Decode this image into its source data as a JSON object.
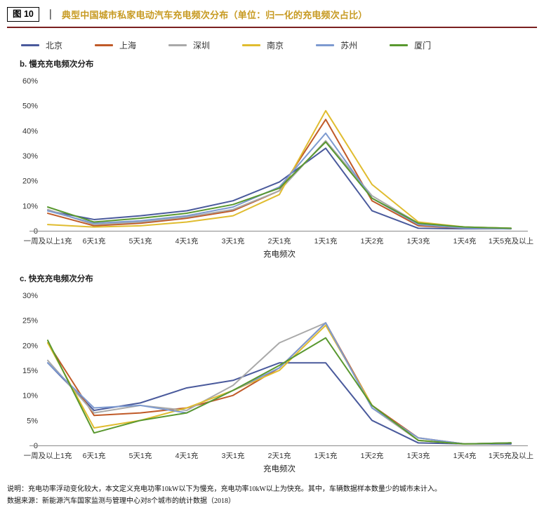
{
  "figure": {
    "tag": "图 10",
    "separator": "｜",
    "title": "典型中国城市私家电动汽车充电频次分布（单位：归一化的充电频次占比）",
    "title_color": "#c79a22",
    "rule_color": "#7a1f1f"
  },
  "chart_data": [
    {
      "type": "line",
      "section_label": "b. 慢充充电频次分布",
      "xlabel": "充电频次",
      "legend_position": "top",
      "grid": false,
      "categories": [
        "一周及以上1充",
        "6天1充",
        "5天1充",
        "4天1充",
        "3天1充",
        "2天1充",
        "1天1充",
        "1天2充",
        "1天3充",
        "1天4充",
        "1天5充及以上"
      ],
      "ylim": [
        0,
        60
      ],
      "ytick_values": [
        0,
        10,
        20,
        30,
        40,
        50,
        60
      ],
      "ytick_labels": [
        "0",
        "10%",
        "20%",
        "30%",
        "40%",
        "50%",
        "60%"
      ],
      "series": [
        {
          "name": "北京",
          "color": "#4a5a9c",
          "values": [
            8,
            4.5,
            6,
            8,
            12,
            19.5,
            33,
            8,
            1,
            0.8,
            0.8
          ]
        },
        {
          "name": "上海",
          "color": "#c05a28",
          "values": [
            7,
            2,
            3,
            5,
            8,
            16,
            44.5,
            12,
            2,
            1,
            0.8
          ]
        },
        {
          "name": "深圳",
          "color": "#a9a9a9",
          "values": [
            8.5,
            2.5,
            3.5,
            5.5,
            8.5,
            16,
            36,
            14,
            3,
            1.5,
            1
          ]
        },
        {
          "name": "南京",
          "color": "#e0bc2f",
          "values": [
            2.5,
            1.5,
            2,
            3.5,
            6,
            14.5,
            48,
            18.5,
            3.5,
            1.5,
            1
          ]
        },
        {
          "name": "苏州",
          "color": "#7d9ad0",
          "values": [
            8,
            3,
            4,
            6,
            9.5,
            17.5,
            39,
            13,
            2.5,
            1,
            0.8
          ]
        },
        {
          "name": "厦门",
          "color": "#59982f",
          "values": [
            9.5,
            3.5,
            5,
            7,
            10.5,
            17,
            35.5,
            13,
            3,
            1.5,
            1
          ]
        }
      ]
    },
    {
      "type": "line",
      "section_label": "c. 快充充电频次分布",
      "xlabel": "充电频次",
      "legend_position": "top",
      "grid": false,
      "categories": [
        "一周及以上1充",
        "6天1充",
        "5天1充",
        "4天1充",
        "3天1充",
        "2天1充",
        "1天1充",
        "1天2充",
        "1天3充",
        "1天4充",
        "1天5充及以上"
      ],
      "ylim": [
        0,
        30
      ],
      "ytick_values": [
        0,
        5,
        10,
        15,
        20,
        25,
        30
      ],
      "ytick_labels": [
        "0",
        "5%",
        "10%",
        "15%",
        "20%",
        "25%",
        "30%"
      ],
      "series": [
        {
          "name": "北京",
          "color": "#4a5a9c",
          "values": [
            16.5,
            7,
            8.5,
            11.5,
            13,
            16.5,
            16.5,
            5,
            0.5,
            0.3,
            0.3
          ]
        },
        {
          "name": "上海",
          "color": "#c05a28",
          "values": [
            20.5,
            6,
            6.5,
            7.5,
            10,
            15.5,
            24.5,
            8,
            1.5,
            0.3,
            0.5
          ]
        },
        {
          "name": "深圳",
          "color": "#a9a9a9",
          "values": [
            17,
            6.5,
            8,
            7,
            12,
            20.5,
            24.5,
            7.5,
            1,
            0.3,
            0.5
          ]
        },
        {
          "name": "南京",
          "color": "#e0bc2f",
          "values": [
            20.5,
            3.5,
            5,
            7.5,
            11,
            15,
            24,
            8,
            1,
            0.3,
            0.5
          ]
        },
        {
          "name": "苏州",
          "color": "#7d9ad0",
          "values": [
            16.5,
            7.5,
            8,
            6.5,
            11,
            15.5,
            24.5,
            7.5,
            1.5,
            0.3,
            0.5
          ]
        },
        {
          "name": "厦门",
          "color": "#59982f",
          "values": [
            21,
            2.5,
            5,
            6.5,
            11,
            16,
            21.5,
            8,
            1,
            0.3,
            0.5
          ]
        }
      ]
    }
  ],
  "notes": {
    "line1": "说明：充电功率浮动变化较大，本文定义充电功率10kW以下为慢充，充电功率10kW以上为快充。其中，车辆数据样本数量少的城市未计入。",
    "line2": "数据来源：新能源汽车国家监测与管理中心对8个城市的统计数据（2018）"
  }
}
